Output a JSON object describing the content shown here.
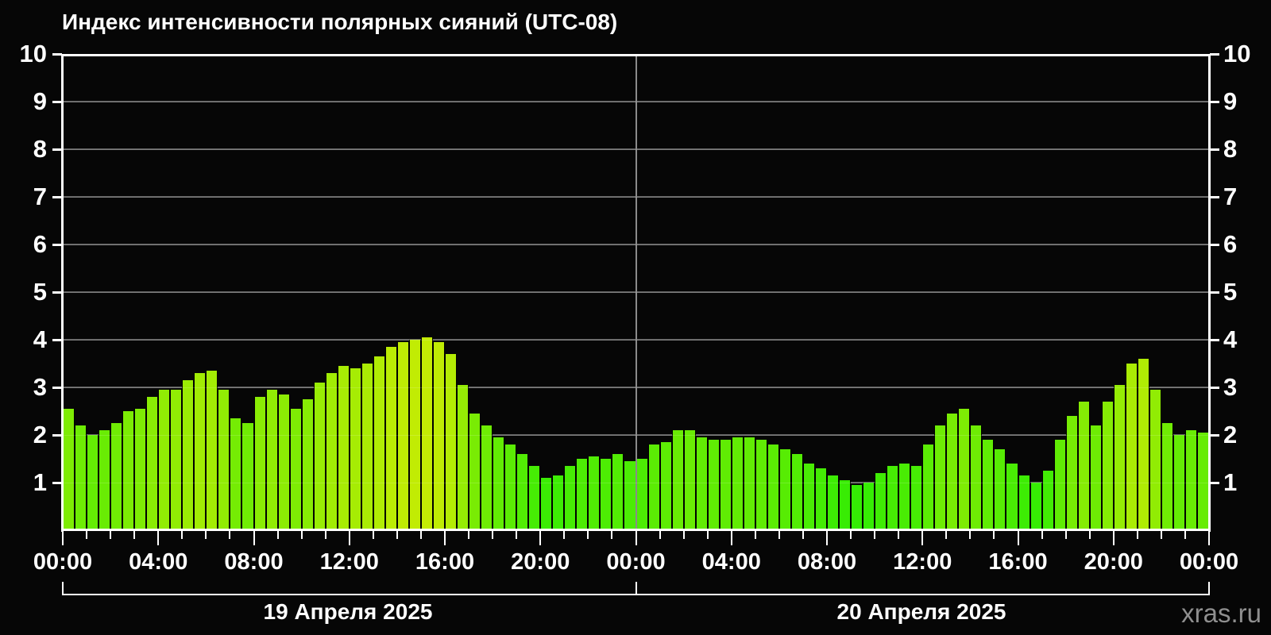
{
  "title": "Индекс интенсивности полярных сияний (UTC-08)",
  "watermark": "xras.ru",
  "colors": {
    "background": "#060606",
    "axis": "#ffffff",
    "grid": "#646464",
    "day_separator": "#8a8a8a",
    "text": "#ffffff",
    "watermark_text": "#8f8f8f",
    "bar_low_value": "#33F000",
    "bar_high_value": "#CCF202"
  },
  "chart_data": {
    "type": "bar",
    "title": "Индекс интенсивности полярных сияний (UTC-08)",
    "ylabel": "",
    "xlabel": "",
    "ylim": [
      0,
      10
    ],
    "y_ticks": [
      1,
      2,
      3,
      4,
      5,
      6,
      7,
      8,
      9,
      10
    ],
    "grid": true,
    "bar_interval_minutes": 30,
    "hours_total": 48,
    "x_tick_step_hours": 4,
    "x_tick_labels": [
      "00:00",
      "04:00",
      "08:00",
      "12:00",
      "16:00",
      "20:00",
      "00:00",
      "04:00",
      "08:00",
      "12:00",
      "16:00",
      "20:00",
      "00:00"
    ],
    "days": [
      {
        "label": "19 Апреля 2025",
        "values": [
          2.55,
          2.2,
          2.0,
          2.1,
          2.25,
          2.5,
          2.55,
          2.8,
          2.95,
          2.95,
          3.15,
          3.3,
          3.35,
          2.95,
          2.35,
          2.25,
          2.8,
          2.95,
          2.85,
          2.55,
          2.75,
          3.1,
          3.3,
          3.45,
          3.4,
          3.5,
          3.65,
          3.85,
          3.95,
          4.0,
          4.05,
          3.95,
          3.7,
          3.05,
          2.45,
          2.2,
          1.95,
          1.8,
          1.6,
          1.35,
          1.1,
          1.15,
          1.35,
          1.5,
          1.55,
          1.5,
          1.6,
          1.45
        ]
      },
      {
        "label": "20 Апреля 2025",
        "values": [
          1.5,
          1.8,
          1.85,
          2.1,
          2.1,
          1.95,
          1.9,
          1.9,
          1.95,
          1.95,
          1.9,
          1.8,
          1.7,
          1.6,
          1.4,
          1.3,
          1.15,
          1.05,
          0.95,
          1.0,
          1.2,
          1.35,
          1.4,
          1.35,
          1.8,
          2.2,
          2.45,
          2.55,
          2.2,
          1.9,
          1.7,
          1.4,
          1.15,
          1.0,
          1.25,
          1.9,
          2.4,
          2.7,
          2.2,
          2.7,
          3.05,
          3.5,
          3.6,
          2.95,
          2.25,
          2.0,
          2.1,
          2.05
        ]
      }
    ]
  }
}
